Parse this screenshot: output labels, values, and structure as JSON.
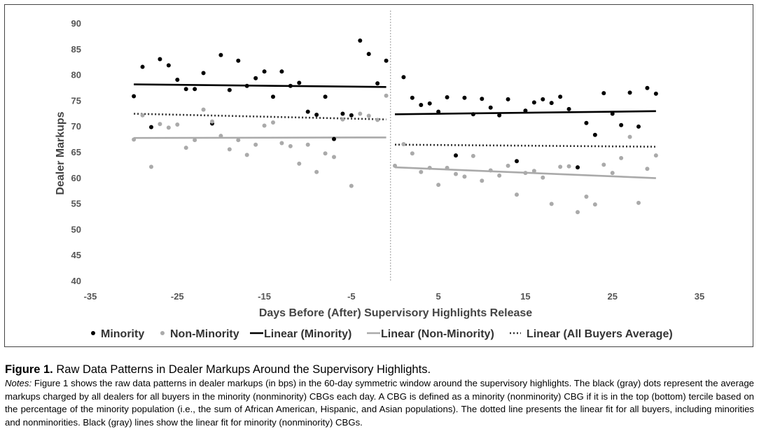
{
  "chart_data": {
    "type": "scatter",
    "xlabel": "Days Before (After) Supervisory Highlights Release",
    "ylabel": "Dealer Markups",
    "xlim": [
      -35,
      35
    ],
    "ylim": [
      40,
      90
    ],
    "xticks": [
      -35,
      -25,
      -15,
      -5,
      5,
      15,
      25,
      35
    ],
    "yticks": [
      40,
      45,
      50,
      55,
      60,
      65,
      70,
      75,
      80,
      85,
      90
    ],
    "grid": false,
    "event_line_x": -0.5,
    "legend_position": "bottom",
    "legend": [
      "Minority",
      "Non-Minority",
      "Linear (Minority)",
      "Linear (Non-Minority)",
      "Linear (All Buyers Average)"
    ],
    "series": [
      {
        "name": "Minority",
        "kind": "points",
        "color": "#000000",
        "x": [
          -30,
          -29,
          -28,
          -27,
          -26,
          -25,
          -24,
          -23,
          -22,
          -21,
          -20,
          -19,
          -18,
          -17,
          -16,
          -15,
          -14,
          -13,
          -12,
          -11,
          -10,
          -9,
          -8,
          -7,
          -6,
          -5,
          -4,
          -3,
          -2,
          -1,
          0,
          1,
          2,
          3,
          4,
          5,
          6,
          7,
          8,
          9,
          10,
          11,
          12,
          13,
          14,
          15,
          16,
          17,
          18,
          19,
          20,
          21,
          22,
          23,
          24,
          25,
          26,
          27,
          28,
          29,
          30
        ],
        "y": [
          75.8,
          81.5,
          69.8,
          83,
          81.8,
          79,
          77.2,
          77.2,
          80.3,
          70.5,
          83.8,
          77,
          82.7,
          77.8,
          79.3,
          80.6,
          75.7,
          80.6,
          77.8,
          78.4,
          72.8,
          72.2,
          75.7,
          67.5,
          72.4,
          72.1,
          86.6,
          84,
          78.3,
          82.7,
          null,
          79.5,
          75.5,
          74.1,
          74.4,
          72.8,
          75.6,
          64.3,
          75.5,
          72.3,
          75.3,
          73.6,
          72.1,
          75.2,
          63.2,
          73,
          74.6,
          75.2,
          74.5,
          75.7,
          73.3,
          62,
          70.6,
          68.3,
          76.4,
          72.4,
          70.2,
          76.5,
          69.9,
          77.4,
          76.3
        ]
      },
      {
        "name": "Non-Minority",
        "kind": "points",
        "color": "#aaaaaa",
        "x": [
          -30,
          -29,
          -28,
          -27,
          -26,
          -25,
          -24,
          -23,
          -22,
          -21,
          -20,
          -19,
          -18,
          -17,
          -16,
          -15,
          -14,
          -13,
          -12,
          -11,
          -10,
          -9,
          -8,
          -7,
          -6,
          -5,
          -4,
          -3,
          -2,
          -1,
          0,
          1,
          2,
          3,
          4,
          5,
          6,
          7,
          8,
          9,
          10,
          11,
          12,
          13,
          14,
          15,
          16,
          17,
          18,
          19,
          20,
          21,
          22,
          23,
          24,
          25,
          26,
          27,
          28,
          29,
          30
        ],
        "y": [
          67.4,
          72.1,
          62.1,
          70.4,
          69.7,
          70.3,
          65.8,
          67.3,
          73.2,
          70.9,
          68.1,
          65.5,
          67.3,
          64.4,
          66.4,
          70.1,
          70.7,
          66.7,
          66.1,
          62.7,
          66.4,
          61.1,
          64.7,
          64,
          71.3,
          58.4,
          72.4,
          72,
          71.2,
          75.9,
          62.3,
          66.5,
          64.7,
          61.1,
          61.9,
          58.6,
          61.9,
          60.7,
          60.2,
          64.2,
          59.4,
          61.4,
          60.4,
          62.3,
          56.7,
          60.9,
          61.3,
          60,
          54.9,
          62.1,
          62.2,
          53.3,
          56.3,
          54.8,
          62.5,
          60.9,
          63.8,
          67.9,
          55.1,
          61.7,
          64.3
        ]
      },
      {
        "name": "Linear (Minority)",
        "kind": "line",
        "color": "#000000",
        "style": "solid",
        "segments": [
          [
            -30,
            78.1,
            -1,
            77.6
          ],
          [
            0,
            72.3,
            30,
            72.9
          ]
        ]
      },
      {
        "name": "Linear (Non-Minority)",
        "kind": "line",
        "color": "#aaaaaa",
        "style": "solid",
        "segments": [
          [
            -30,
            67.7,
            -1,
            67.8
          ],
          [
            0,
            62,
            30,
            59.9
          ]
        ]
      },
      {
        "name": "Linear (All Buyers Average)",
        "kind": "line",
        "color": "#333333",
        "style": "dotted",
        "segments": [
          [
            -30,
            72.4,
            -1,
            71.3
          ],
          [
            0,
            66.4,
            30,
            66
          ]
        ]
      }
    ]
  },
  "caption": {
    "figure_label": "Figure 1.",
    "title": "Raw Data Patterns in Dealer Markups Around the Supervisory Highlights.",
    "notes_label": "Notes:",
    "notes_text": "Figure 1 shows the raw data patterns in dealer markups (in bps) in the 60-day symmetric window around the supervisory highlights. The black (gray) dots represent the average markups charged by all dealers for all buyers in the minority (nonminority) CBGs each day. A CBG is defined as a minority (nonminority) CBG if it is in the top (bottom) tercile based on the percentage of the minority population (i.e., the sum of African American, Hispanic, and Asian populations). The dotted line presents the linear fit for all buyers, including minorities and nonminorities. Black (gray) lines show the linear fit for minority (nonminority) CBGs."
  }
}
